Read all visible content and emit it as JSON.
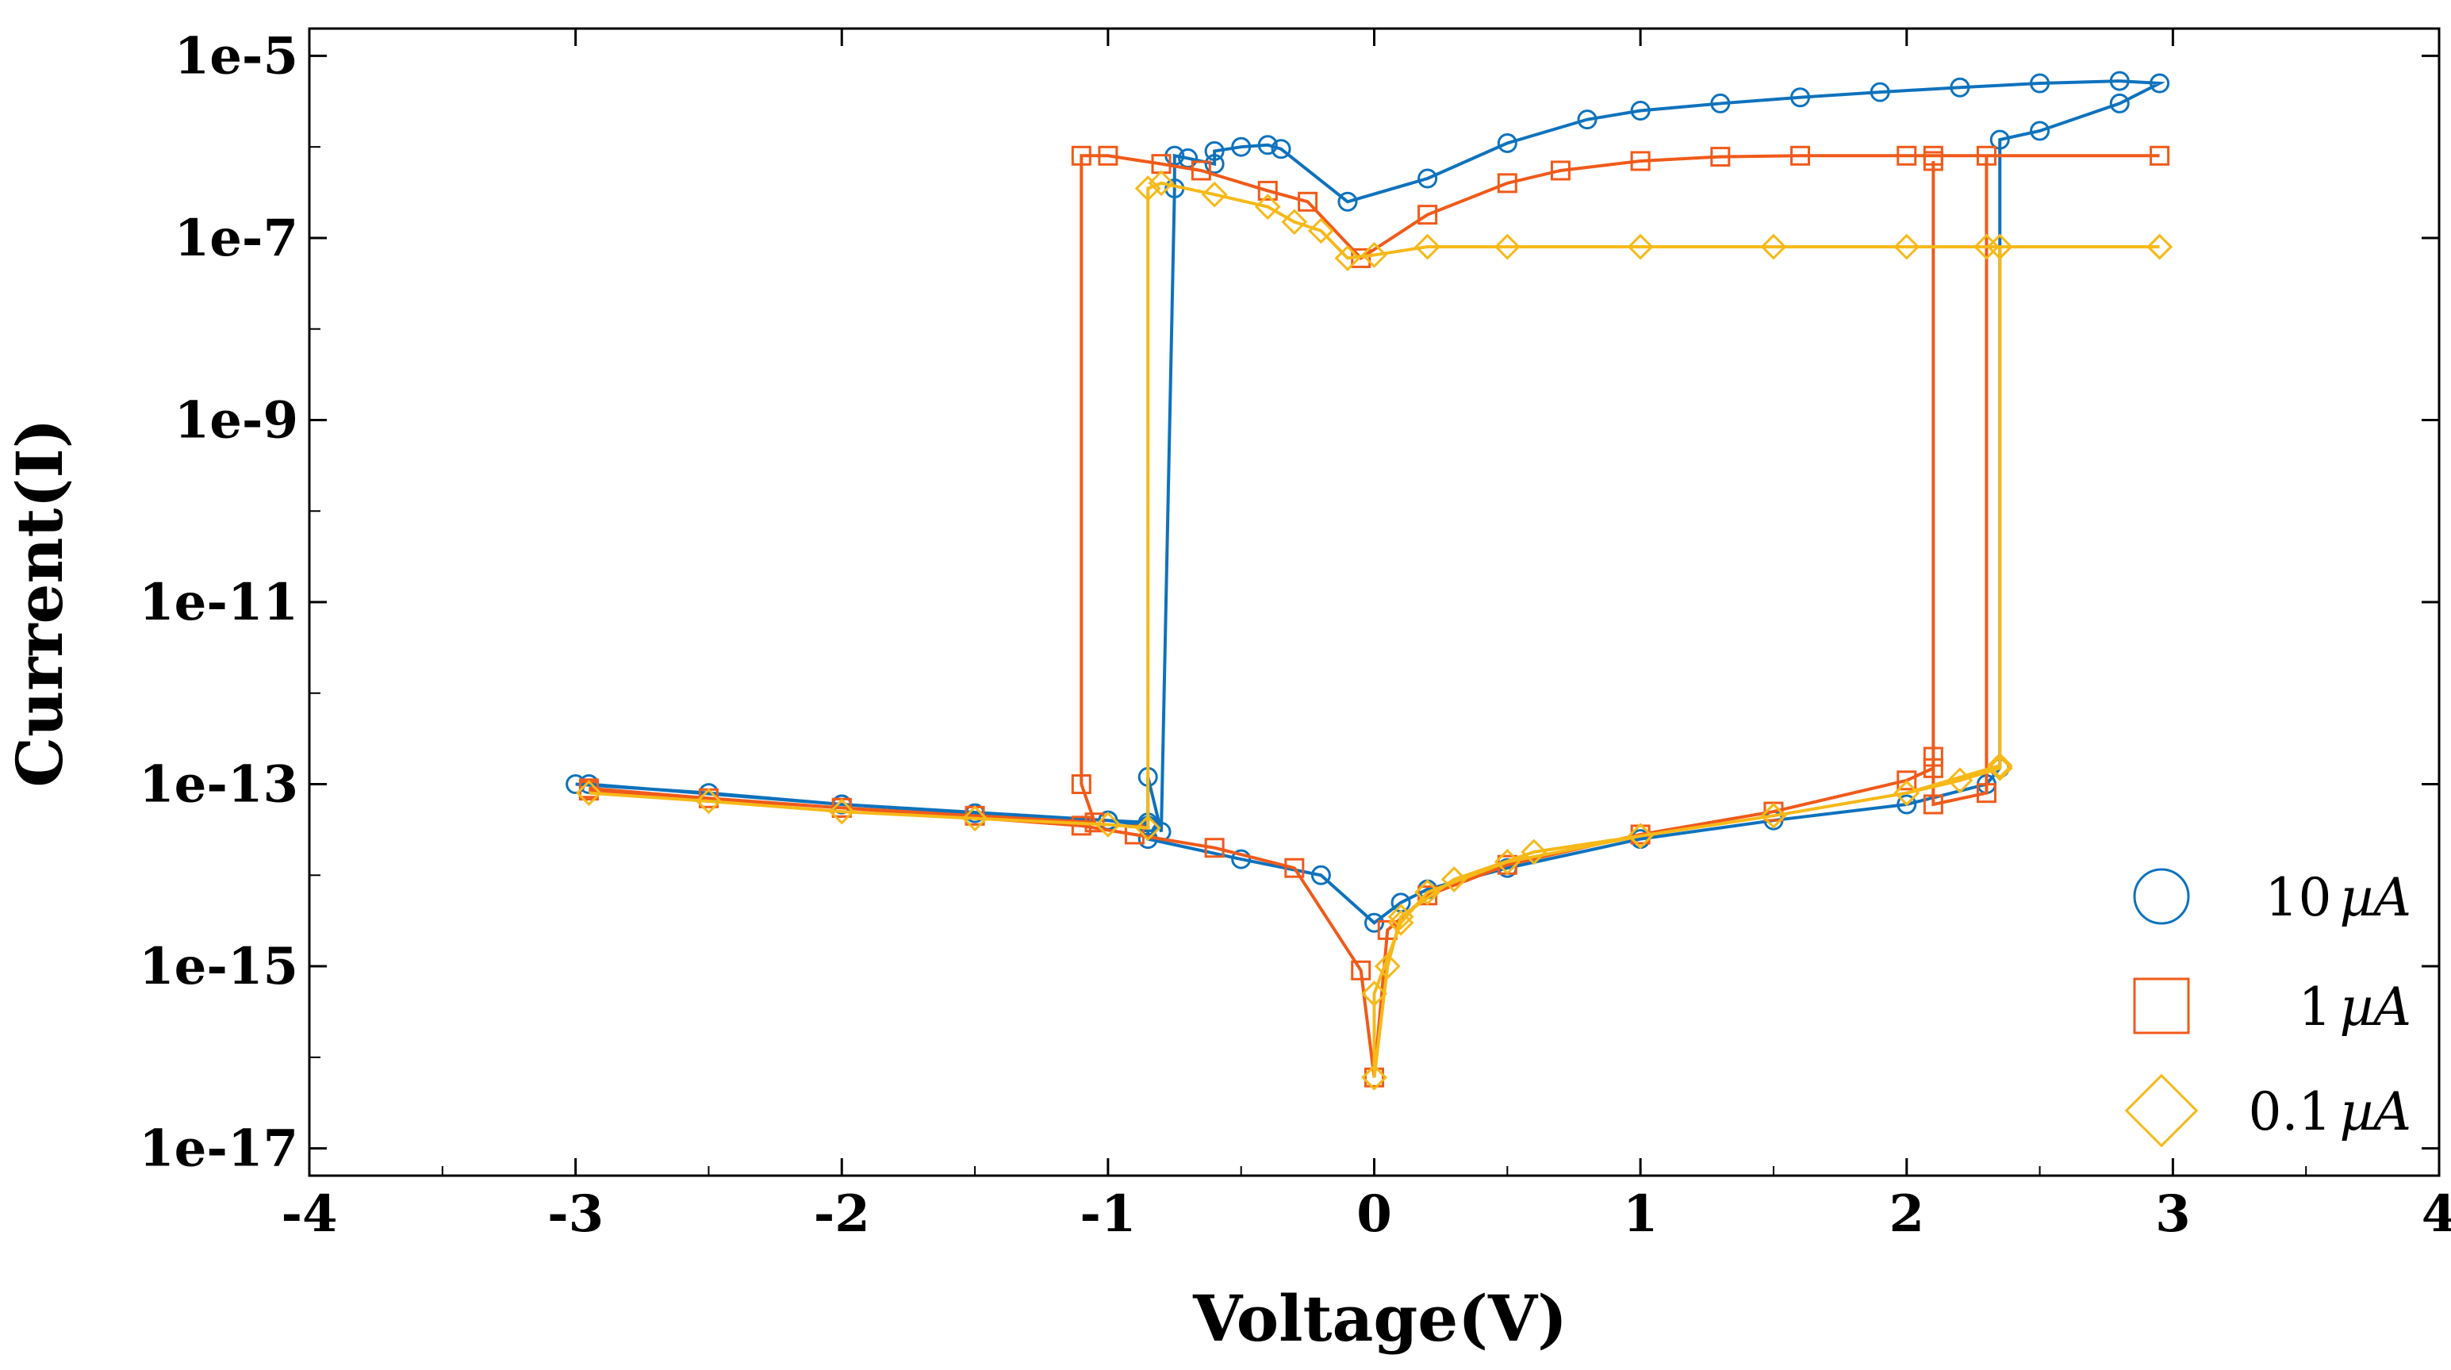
{
  "chart_data": {
    "type": "line",
    "title": "",
    "xlabel": "Voltage(V)",
    "ylabel": "Current(I)",
    "xlim": [
      -4,
      4
    ],
    "ylim_log10": [
      -17.3,
      -4.7
    ],
    "y_scale": "log",
    "x_ticks": [
      "-4",
      "-3",
      "-2",
      "-1",
      "0",
      "1",
      "2",
      "3",
      "4"
    ],
    "y_ticks": [
      "1e-5",
      "1e-7",
      "1e-9",
      "1e-11",
      "1e-13",
      "1e-15",
      "1e-17"
    ],
    "legend_position": "bottom-right",
    "series": [
      {
        "name": "10µA",
        "label_num": "10",
        "label_unit": "µA",
        "marker": "circle",
        "color": "#0E72BD",
        "points": [
          [
            -3.0,
            1e-13
          ],
          [
            -2.5,
            8e-14
          ],
          [
            -2.0,
            6e-14
          ],
          [
            -1.5,
            4.8e-14
          ],
          [
            -1.0,
            4e-14
          ],
          [
            -0.85,
            3.8e-14
          ],
          [
            -0.85,
            1.2e-13
          ],
          [
            -0.8,
            3e-14
          ],
          [
            -0.75,
            3.5e-07
          ],
          [
            -0.75,
            8e-07
          ],
          [
            -0.7,
            7.5e-07
          ],
          [
            -0.6,
            6.5e-07
          ],
          [
            -0.6,
            9e-07
          ],
          [
            -0.5,
            1e-06
          ],
          [
            -0.4,
            1.05e-06
          ],
          [
            -0.35,
            9.5e-07
          ],
          [
            -0.1,
            2.5e-07
          ],
          [
            0.2,
            4.5e-07
          ],
          [
            0.5,
            1.1e-06
          ],
          [
            0.8,
            2e-06
          ],
          [
            1.0,
            2.5e-06
          ],
          [
            1.3,
            3e-06
          ],
          [
            1.6,
            3.5e-06
          ],
          [
            1.9,
            4e-06
          ],
          [
            2.2,
            4.5e-06
          ],
          [
            2.5,
            5e-06
          ],
          [
            2.8,
            5.3e-06
          ],
          [
            2.95,
            5e-06
          ],
          [
            2.8,
            3e-06
          ],
          [
            2.5,
            1.5e-06
          ],
          [
            2.35,
            1.2e-06
          ],
          [
            2.35,
            1.5e-13
          ],
          [
            2.3,
            1e-13
          ],
          [
            2.0,
            6e-14
          ],
          [
            1.5,
            4e-14
          ],
          [
            1.0,
            2.5e-14
          ],
          [
            0.5,
            1.2e-14
          ],
          [
            0.2,
            7e-15
          ],
          [
            0.1,
            5e-15
          ],
          [
            0.0,
            3e-15
          ],
          [
            -0.2,
            1e-14
          ],
          [
            -0.5,
            1.5e-14
          ],
          [
            -0.85,
            2.5e-14
          ],
          [
            -0.85,
            3.5e-14
          ],
          [
            -1.0,
            4e-14
          ],
          [
            -2.0,
            6e-14
          ],
          [
            -2.95,
            1e-13
          ]
        ]
      },
      {
        "name": "1µA",
        "label_num": "1",
        "label_unit": "µA",
        "marker": "square",
        "color": "#F05A1A",
        "points": [
          [
            -2.95,
            9e-14
          ],
          [
            -2.5,
            7e-14
          ],
          [
            -2.0,
            5.5e-14
          ],
          [
            -1.5,
            4.5e-14
          ],
          [
            -1.05,
            3.8e-14
          ],
          [
            -1.1,
            1e-13
          ],
          [
            -1.1,
            8e-07
          ],
          [
            -1.0,
            8e-07
          ],
          [
            -0.8,
            6.5e-07
          ],
          [
            -0.65,
            5.5e-07
          ],
          [
            -0.4,
            3.3e-07
          ],
          [
            -0.25,
            2.5e-07
          ],
          [
            -0.05,
            6e-08
          ],
          [
            0.2,
            1.8e-07
          ],
          [
            0.5,
            4e-07
          ],
          [
            0.7,
            5.5e-07
          ],
          [
            1.0,
            7e-07
          ],
          [
            1.3,
            7.8e-07
          ],
          [
            1.6,
            8e-07
          ],
          [
            2.0,
            8e-07
          ],
          [
            2.1,
            8e-07
          ],
          [
            2.95,
            8e-07
          ],
          [
            2.3,
            8e-07
          ],
          [
            2.3,
            8e-14
          ],
          [
            2.1,
            6e-14
          ],
          [
            2.1,
            2e-13
          ],
          [
            2.1,
            7e-07
          ],
          [
            2.1,
            1.5e-13
          ],
          [
            2.0,
            1.1e-13
          ],
          [
            1.5,
            5e-14
          ],
          [
            1.0,
            2.8e-14
          ],
          [
            0.5,
            1.3e-14
          ],
          [
            0.2,
            6e-15
          ],
          [
            0.05,
            2.5e-15
          ],
          [
            0.0,
            6e-17
          ],
          [
            -0.05,
            9e-16
          ],
          [
            -0.3,
            1.2e-14
          ],
          [
            -0.6,
            2e-14
          ],
          [
            -0.9,
            2.8e-14
          ],
          [
            -1.1,
            3.5e-14
          ],
          [
            -2.0,
            5.5e-14
          ],
          [
            -2.95,
            8.5e-14
          ]
        ]
      },
      {
        "name": "0.1µA",
        "label_num": "0.1",
        "label_unit": "µA",
        "marker": "diamond",
        "color": "#F6B918",
        "points": [
          [
            -2.95,
            8e-14
          ],
          [
            -2.5,
            6.5e-14
          ],
          [
            -2.0,
            5e-14
          ],
          [
            -1.5,
            4.2e-14
          ],
          [
            -1.0,
            3.6e-14
          ],
          [
            -0.85,
            3.3e-14
          ],
          [
            -0.85,
            3.5e-07
          ],
          [
            -0.8,
            4e-07
          ],
          [
            -0.6,
            3e-07
          ],
          [
            -0.4,
            2.2e-07
          ],
          [
            -0.3,
            1.5e-07
          ],
          [
            -0.2,
            1.2e-07
          ],
          [
            -0.1,
            6e-08
          ],
          [
            0.0,
            6.5e-08
          ],
          [
            0.2,
            8e-08
          ],
          [
            0.5,
            8e-08
          ],
          [
            1.0,
            8e-08
          ],
          [
            1.5,
            8e-08
          ],
          [
            2.0,
            8e-08
          ],
          [
            2.3,
            8e-08
          ],
          [
            2.95,
            8e-08
          ],
          [
            2.35,
            8e-08
          ],
          [
            2.35,
            1.5e-13
          ],
          [
            2.2,
            1.1e-13
          ],
          [
            2.0,
            8e-14
          ],
          [
            1.5,
            4.5e-14
          ],
          [
            1.0,
            2.7e-14
          ],
          [
            0.5,
            1.4e-14
          ],
          [
            0.2,
            6.5e-15
          ],
          [
            0.1,
            3e-15
          ],
          [
            0.0,
            5e-16
          ],
          [
            0.0,
            6e-17
          ],
          [
            0.05,
            1e-15
          ],
          [
            0.1,
            3.5e-15
          ],
          [
            0.3,
            9e-15
          ],
          [
            0.6,
            1.8e-14
          ],
          [
            1.0,
            2.7e-14
          ],
          [
            1.5,
            4.5e-14
          ],
          [
            2.0,
            8e-14
          ],
          [
            2.35,
            1.6e-13
          ],
          [
            2.35,
            8e-08
          ],
          [
            2.95,
            8e-08
          ]
        ]
      }
    ]
  }
}
